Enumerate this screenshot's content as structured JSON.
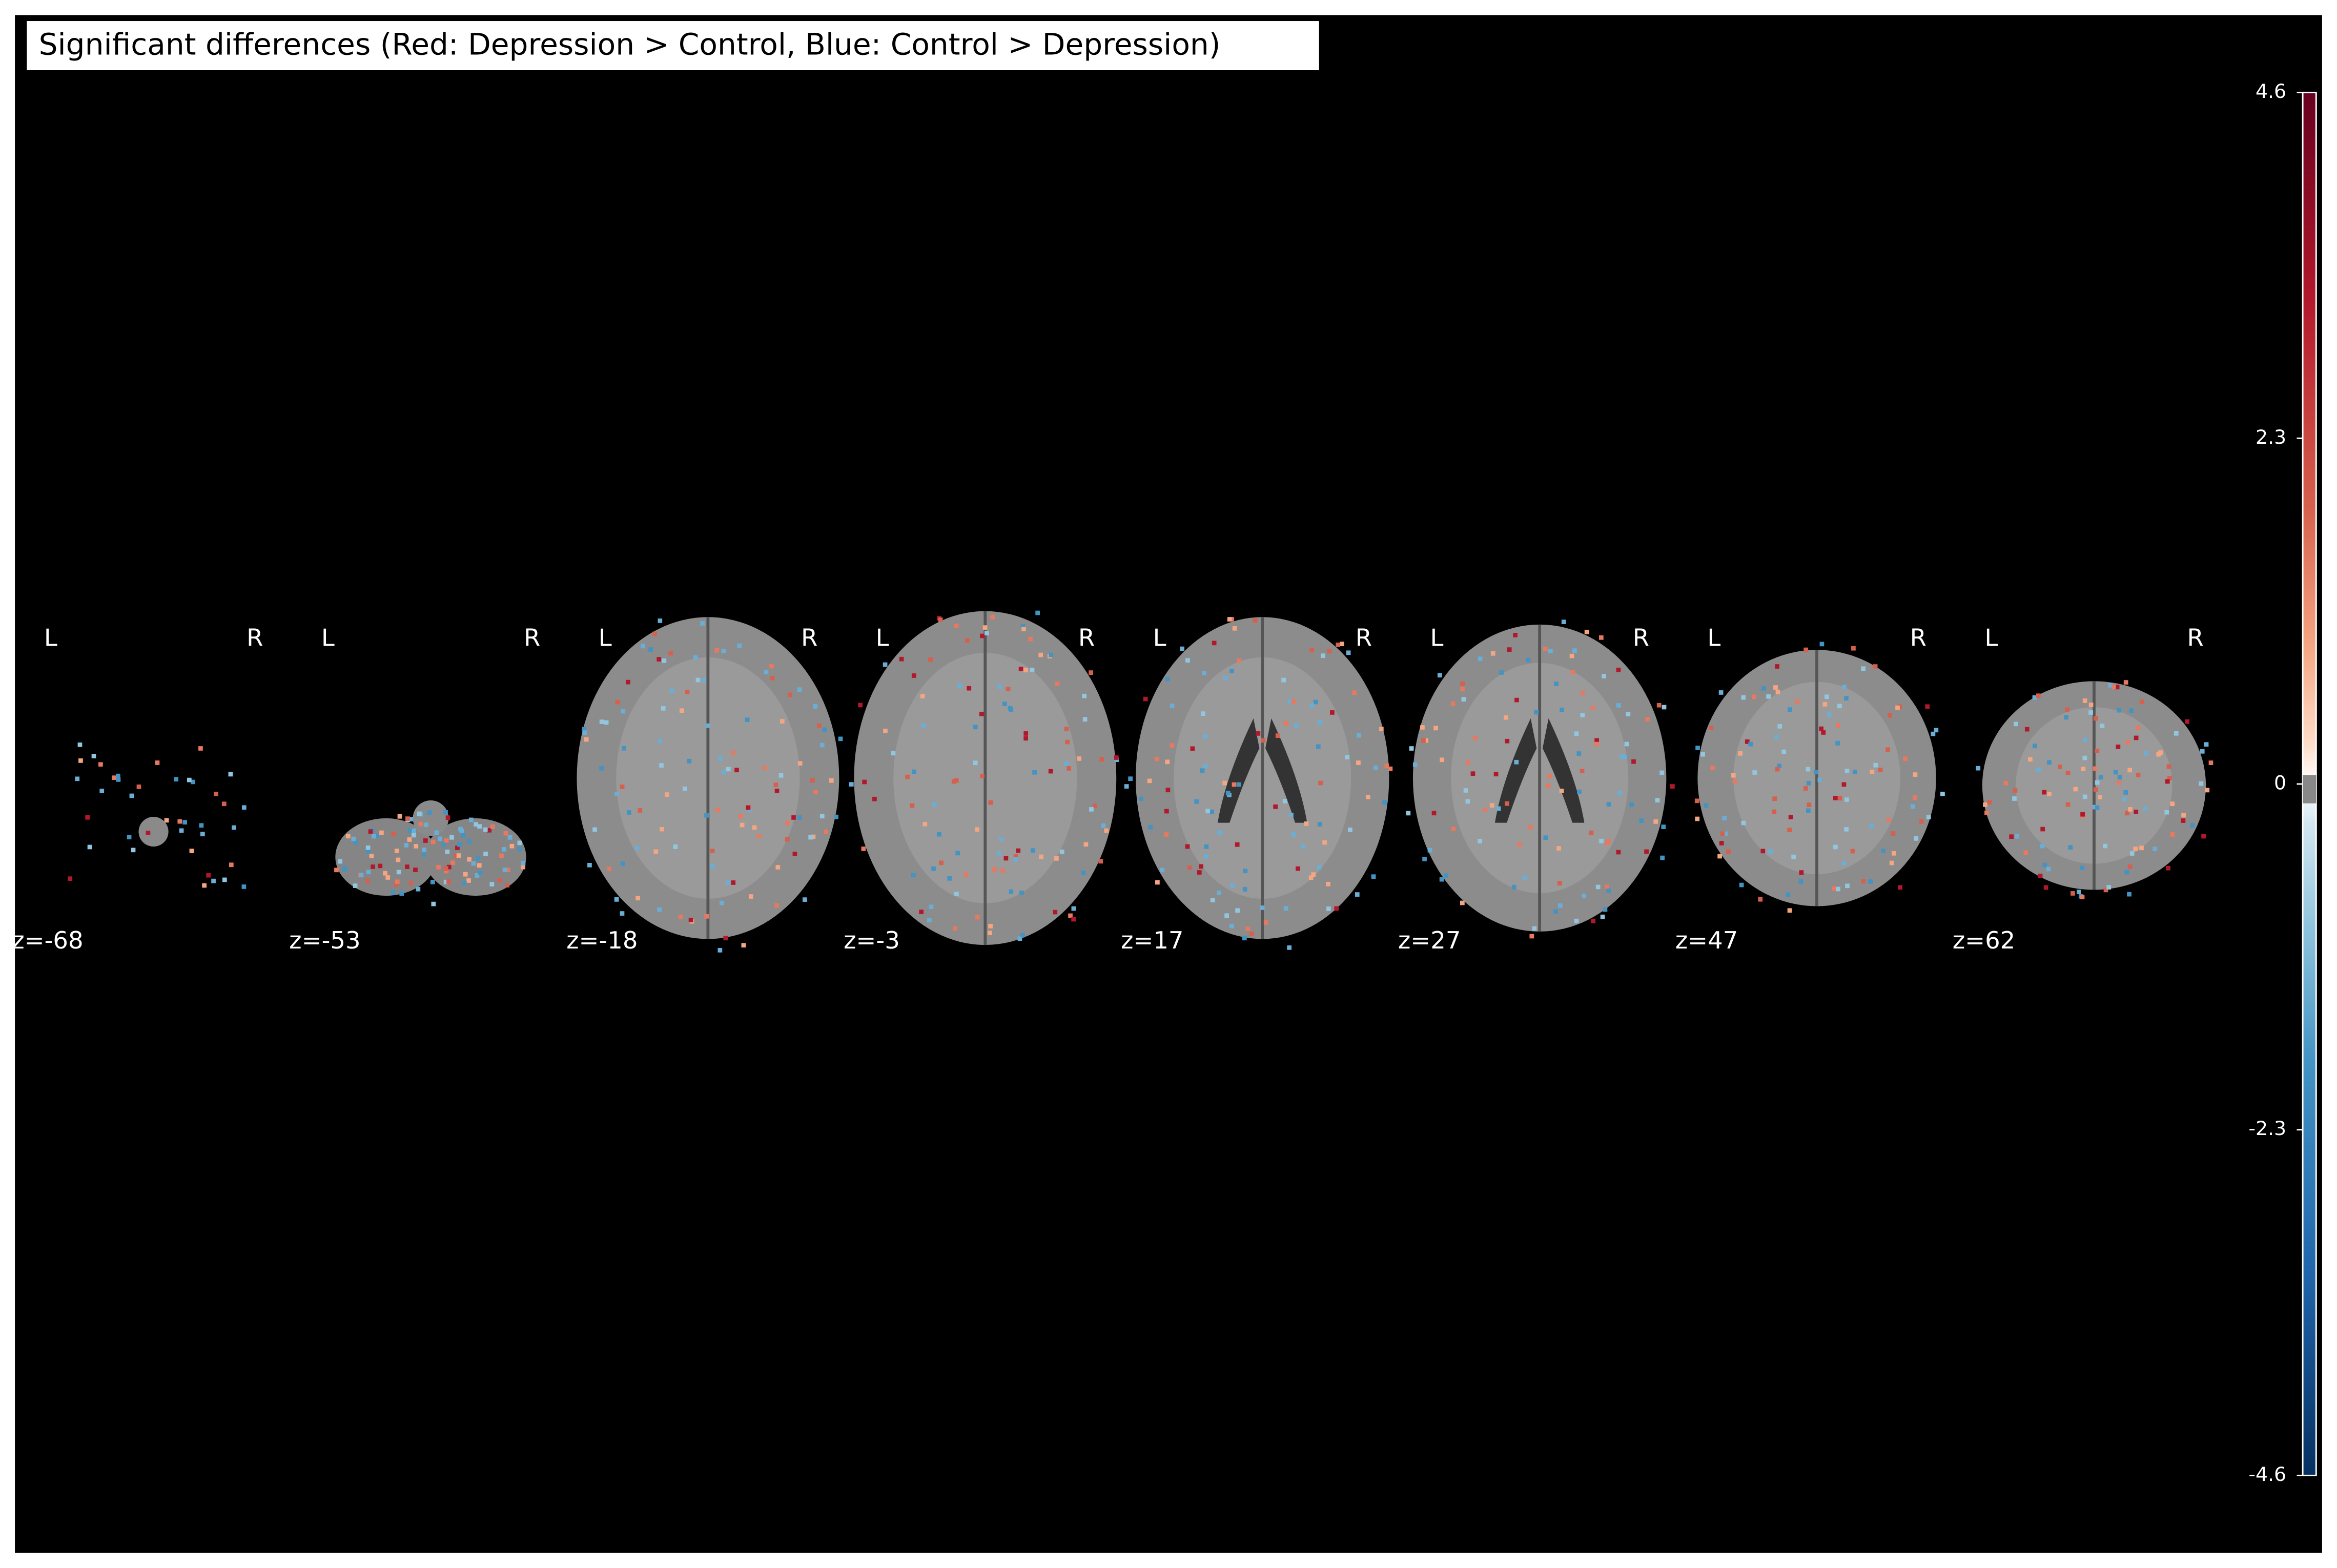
{
  "title": "Significant differences (Red: Depression > Control, Blue: Control > Depression)",
  "slices": [
    {
      "label": "z=-68",
      "left": "L",
      "right": "R"
    },
    {
      "label": "z=-53",
      "left": "L",
      "right": "R"
    },
    {
      "label": "z=-18",
      "left": "L",
      "right": "R"
    },
    {
      "label": "z=-3",
      "left": "L",
      "right": "R"
    },
    {
      "label": "z=17",
      "left": "L",
      "right": "R"
    },
    {
      "label": "z=27",
      "left": "L",
      "right": "R"
    },
    {
      "label": "z=47",
      "left": "L",
      "right": "R"
    },
    {
      "label": "z=62",
      "left": "L",
      "right": "R"
    }
  ],
  "colorbar": {
    "range": [
      -4.6,
      4.6
    ],
    "ticks": [
      4.6,
      2.3,
      0,
      -2.3,
      -4.6
    ]
  }
}
